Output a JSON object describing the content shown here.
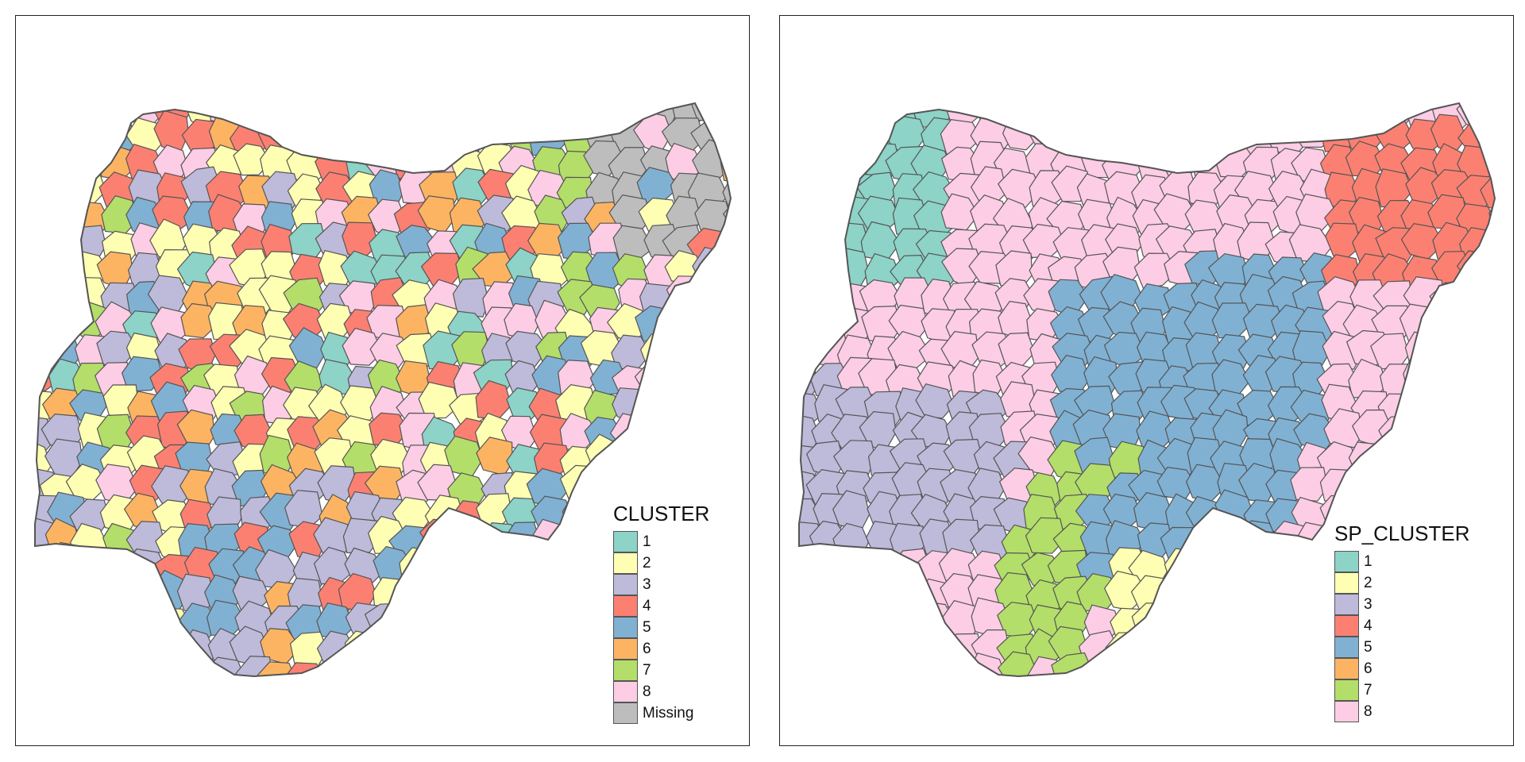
{
  "colors": {
    "1": "#8dd3c7",
    "2": "#ffffb3",
    "3": "#bebada",
    "4": "#fb8072",
    "5": "#80b1d3",
    "6": "#fdb462",
    "7": "#b3de69",
    "8": "#fccde5",
    "missing": "#bdbdbd",
    "border": "#555555"
  },
  "left_map": {
    "legend_title": "CLUSTER",
    "legend_items": [
      {
        "label": "1",
        "color": "#8dd3c7"
      },
      {
        "label": "2",
        "color": "#ffffb3"
      },
      {
        "label": "3",
        "color": "#bebada"
      },
      {
        "label": "4",
        "color": "#fb8072"
      },
      {
        "label": "5",
        "color": "#80b1d3"
      },
      {
        "label": "6",
        "color": "#fdb462"
      },
      {
        "label": "7",
        "color": "#b3de69"
      },
      {
        "label": "8",
        "color": "#fccde5"
      },
      {
        "label": "Missing",
        "color": "#bdbdbd"
      }
    ]
  },
  "right_map": {
    "legend_title": "SP_CLUSTER",
    "legend_items": [
      {
        "label": "1",
        "color": "#8dd3c7"
      },
      {
        "label": "2",
        "color": "#ffffb3"
      },
      {
        "label": "3",
        "color": "#bebada"
      },
      {
        "label": "4",
        "color": "#fb8072"
      },
      {
        "label": "5",
        "color": "#80b1d3"
      },
      {
        "label": "6",
        "color": "#fdb462"
      },
      {
        "label": "7",
        "color": "#b3de69"
      },
      {
        "label": "8",
        "color": "#fccde5"
      }
    ]
  }
}
